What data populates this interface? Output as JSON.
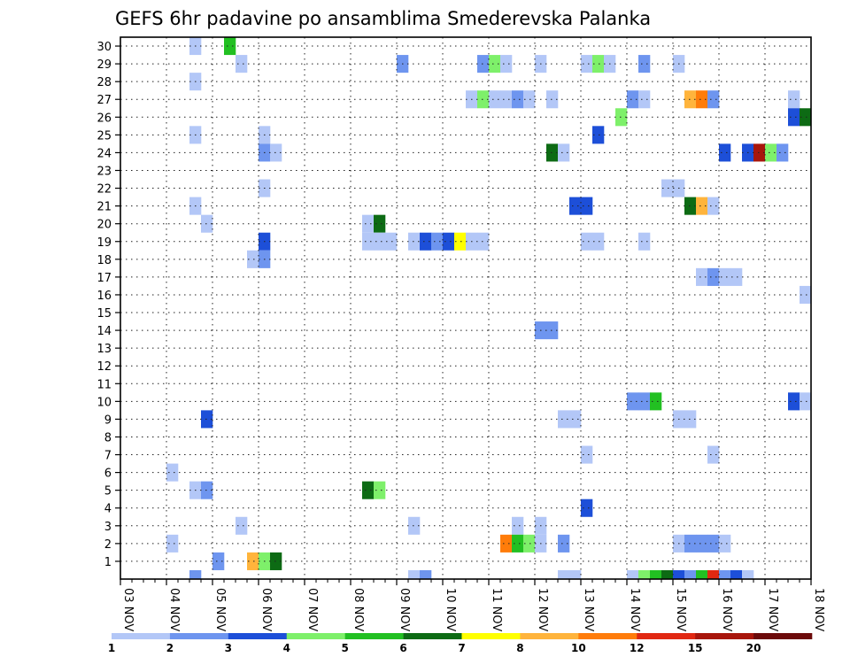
{
  "chart_data": {
    "type": "heatmap",
    "title": "GEFS 6hr padavine po ansamblima Smederevska Palanka",
    "x_ticks": [
      "03 NOV",
      "04 NOV",
      "05 NOV",
      "06 NOV",
      "07 NOV",
      "08 NOV",
      "09 NOV",
      "10 NOV",
      "11 NOV",
      "12 NOV",
      "13 NOV",
      "14 NOV",
      "15 NOV",
      "16 NOV",
      "17 NOV",
      "18 NOV"
    ],
    "y_ticks": [
      "1",
      "2",
      "3",
      "4",
      "5",
      "6",
      "7",
      "8",
      "9",
      "10",
      "11",
      "12",
      "13",
      "14",
      "15",
      "16",
      "17",
      "18",
      "19",
      "20",
      "21",
      "22",
      "23",
      "24",
      "25",
      "26",
      "27",
      "28",
      "29",
      "30"
    ],
    "steps_per_day": 4,
    "legend": {
      "labels": [
        "1",
        "2",
        "3",
        "4",
        "5",
        "6",
        "7",
        "8",
        "10",
        "12",
        "15",
        "20"
      ],
      "colors": [
        "#b3c7f7",
        "#6e95ef",
        "#1d4fd8",
        "#7ef06a",
        "#22c022",
        "#0d6b14",
        "#ffff00",
        "#ffb43c",
        "#ff7c0a",
        "#e12812",
        "#a8160c",
        "#6c0a0a"
      ]
    },
    "cells": [
      {
        "m": 30,
        "s": [
          [
            6,
            1
          ],
          [
            9,
            5
          ]
        ]
      },
      {
        "m": 29,
        "s": [
          [
            10,
            1
          ],
          [
            24,
            2
          ],
          [
            31,
            2
          ],
          [
            32,
            4
          ],
          [
            33,
            1
          ],
          [
            36,
            1
          ],
          [
            40,
            1
          ],
          [
            41,
            4
          ],
          [
            42,
            1
          ],
          [
            45,
            2
          ],
          [
            48,
            1
          ]
        ]
      },
      {
        "m": 28,
        "s": [
          [
            6,
            1
          ]
        ]
      },
      {
        "m": 27,
        "s": [
          [
            30,
            1
          ],
          [
            31,
            4
          ],
          [
            32,
            1
          ],
          [
            33,
            1
          ],
          [
            34,
            2
          ],
          [
            35,
            1
          ],
          [
            37,
            1
          ],
          [
            44,
            2
          ],
          [
            45,
            1
          ],
          [
            49,
            8
          ],
          [
            50,
            9
          ],
          [
            51,
            2
          ],
          [
            58,
            1
          ]
        ]
      },
      {
        "m": 26,
        "s": [
          [
            43,
            4
          ],
          [
            58,
            3
          ],
          [
            59,
            6
          ]
        ]
      },
      {
        "m": 25,
        "s": [
          [
            6,
            1
          ],
          [
            12,
            1
          ],
          [
            41,
            3
          ]
        ]
      },
      {
        "m": 24,
        "s": [
          [
            12,
            2
          ],
          [
            13,
            1
          ],
          [
            37,
            6
          ],
          [
            38,
            1
          ],
          [
            52,
            3
          ],
          [
            54,
            3
          ],
          [
            55,
            11
          ],
          [
            56,
            4
          ],
          [
            57,
            2
          ]
        ]
      },
      {
        "m": 22,
        "s": [
          [
            12,
            1
          ],
          [
            47,
            1
          ],
          [
            48,
            1
          ]
        ]
      },
      {
        "m": 21,
        "s": [
          [
            6,
            1
          ],
          [
            39,
            3
          ],
          [
            40,
            3
          ],
          [
            49,
            6
          ],
          [
            50,
            8
          ],
          [
            51,
            1
          ]
        ]
      },
      {
        "m": 20,
        "s": [
          [
            7,
            1
          ],
          [
            21,
            1
          ],
          [
            22,
            6
          ]
        ]
      },
      {
        "m": 19,
        "s": [
          [
            12,
            3
          ],
          [
            21,
            1
          ],
          [
            22,
            1
          ],
          [
            23,
            1
          ],
          [
            25,
            1
          ],
          [
            26,
            3
          ],
          [
            27,
            2
          ],
          [
            28,
            3
          ],
          [
            29,
            7
          ],
          [
            30,
            1
          ],
          [
            31,
            1
          ],
          [
            40,
            1
          ],
          [
            41,
            1
          ],
          [
            45,
            1
          ]
        ]
      },
      {
        "m": 18,
        "s": [
          [
            11,
            1
          ],
          [
            12,
            2
          ]
        ]
      },
      {
        "m": 17,
        "s": [
          [
            50,
            1
          ],
          [
            51,
            2
          ],
          [
            52,
            1
          ],
          [
            53,
            1
          ]
        ]
      },
      {
        "m": 16,
        "s": [
          [
            59,
            1
          ]
        ]
      },
      {
        "m": 14,
        "s": [
          [
            36,
            2
          ],
          [
            37,
            2
          ]
        ]
      },
      {
        "m": 10,
        "s": [
          [
            44,
            2
          ],
          [
            45,
            2
          ],
          [
            46,
            5
          ],
          [
            58,
            3
          ],
          [
            59,
            1
          ]
        ]
      },
      {
        "m": 9,
        "s": [
          [
            7,
            3
          ],
          [
            38,
            1
          ],
          [
            39,
            1
          ],
          [
            48,
            1
          ],
          [
            49,
            1
          ]
        ]
      },
      {
        "m": 7,
        "s": [
          [
            40,
            1
          ],
          [
            51,
            1
          ]
        ]
      },
      {
        "m": 6,
        "s": [
          [
            4,
            1
          ]
        ]
      },
      {
        "m": 5,
        "s": [
          [
            6,
            1
          ],
          [
            7,
            2
          ],
          [
            21,
            6
          ],
          [
            22,
            4
          ]
        ]
      },
      {
        "m": 4,
        "s": [
          [
            40,
            3
          ]
        ]
      },
      {
        "m": 3,
        "s": [
          [
            10,
            1
          ],
          [
            25,
            1
          ],
          [
            34,
            1
          ],
          [
            36,
            1
          ]
        ]
      },
      {
        "m": 2,
        "s": [
          [
            4,
            1
          ],
          [
            33,
            9
          ],
          [
            34,
            5
          ],
          [
            35,
            4
          ],
          [
            36,
            1
          ],
          [
            38,
            2
          ],
          [
            48,
            1
          ],
          [
            49,
            2
          ],
          [
            50,
            2
          ],
          [
            51,
            2
          ],
          [
            52,
            1
          ]
        ]
      },
      {
        "m": 1,
        "s": [
          [
            8,
            2
          ],
          [
            11,
            8
          ],
          [
            12,
            4
          ],
          [
            13,
            6
          ]
        ]
      },
      {
        "m": 0,
        "s": [
          [
            6,
            2
          ],
          [
            25,
            1
          ],
          [
            26,
            2
          ],
          [
            38,
            1
          ],
          [
            39,
            1
          ],
          [
            44,
            1
          ],
          [
            45,
            4
          ],
          [
            46,
            5
          ],
          [
            47,
            6
          ],
          [
            48,
            3
          ],
          [
            49,
            2
          ],
          [
            50,
            5
          ],
          [
            51,
            10
          ],
          [
            52,
            2
          ],
          [
            53,
            3
          ],
          [
            54,
            1
          ]
        ]
      }
    ]
  }
}
